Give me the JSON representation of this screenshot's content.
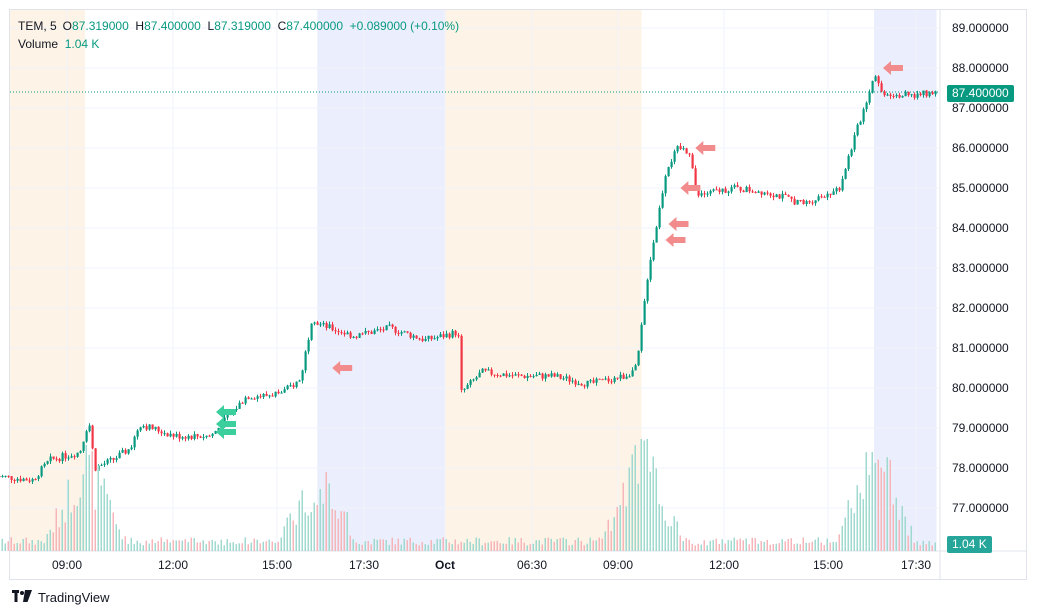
{
  "legend": {
    "symbol": "TEM, 5",
    "open_label": "O",
    "open": "87.319000",
    "high_label": "H",
    "high": "87.400000",
    "low_label": "L",
    "low": "87.319000",
    "close_label": "C",
    "close": "87.400000",
    "change": "+0.089000 (+0.10%)",
    "volume_label": "Volume",
    "volume": "1.04 K"
  },
  "current_price_label": "87.400000",
  "current_volume_label": "1.04 K",
  "branding": "TradingView",
  "colors": {
    "up": "#089981",
    "down": "#f23645",
    "premarket": "#fdf3e6",
    "afterhours": "#ebeffd",
    "arrow_up": "#3ccf9e",
    "arrow_down": "#f28c8c"
  },
  "chart_data": {
    "type": "candlestick",
    "title": "TEM, 5",
    "ylim": [
      76.0,
      89.0
    ],
    "y_ticks": [
      "77.000000",
      "78.000000",
      "79.000000",
      "80.000000",
      "81.000000",
      "82.000000",
      "83.000000",
      "84.000000",
      "85.000000",
      "86.000000",
      "87.000000",
      "88.000000",
      "89.000000"
    ],
    "x_ticks": [
      "09:00",
      "12:00",
      "15:00",
      "17:30",
      "Oct",
      "06:30",
      "09:00",
      "12:00",
      "15:00",
      "17:30"
    ],
    "last_price": 87.4,
    "sessions": [
      {
        "type": "premarket",
        "from": "Day1 04:00",
        "to": "Day1 09:30"
      },
      {
        "type": "afterhours",
        "from": "Day1 16:00",
        "to": "Day1 20:00"
      },
      {
        "type": "premarket",
        "from": "Day2 04:00",
        "to": "Day2 09:30"
      },
      {
        "type": "afterhours",
        "from": "Day2 16:00",
        "to": "Day2 17:45"
      }
    ],
    "price_path": [
      [
        "Day1 07:00",
        77.8
      ],
      [
        "Day1 08:00",
        77.7
      ],
      [
        "Day1 08:30",
        78.2
      ],
      [
        "Day1 09:20",
        78.4
      ],
      [
        "Day1 09:35",
        79.2
      ],
      [
        "Day1 09:45",
        78.0
      ],
      [
        "Day1 10:15",
        78.2
      ],
      [
        "Day1 10:45",
        78.5
      ],
      [
        "Day1 11:00",
        79.1
      ],
      [
        "Day1 12:00",
        78.8
      ],
      [
        "Day1 13:00",
        78.8
      ],
      [
        "Day1 13:30",
        79.3
      ],
      [
        "Day1 14:00",
        79.8
      ],
      [
        "Day1 14:30",
        79.8
      ],
      [
        "Day1 15:00",
        79.9
      ],
      [
        "Day1 15:30",
        80.2
      ],
      [
        "Day1 15:50",
        81.8
      ],
      [
        "Day1 16:00",
        81.6
      ],
      [
        "Day1 17:00",
        81.3
      ],
      [
        "Day1 18:00",
        81.5
      ],
      [
        "Day1 19:00",
        81.2
      ],
      [
        "Day1 19:55",
        81.4
      ],
      [
        "Day1 20:00",
        79.5
      ],
      [
        "Day2 04:00",
        79.5
      ],
      [
        "Day2 05:00",
        80.4
      ],
      [
        "Day2 06:00",
        80.3
      ],
      [
        "Day2 07:00",
        80.3
      ],
      [
        "Day2 08:00",
        80.1
      ],
      [
        "Day2 09:00",
        80.3
      ],
      [
        "Day2 09:20",
        80.5
      ],
      [
        "Day2 09:40",
        83.0
      ],
      [
        "Day2 09:55",
        84.2
      ],
      [
        "Day2 10:10",
        85.5
      ],
      [
        "Day2 10:30",
        86.0
      ],
      [
        "Day2 10:50",
        85.9
      ],
      [
        "Day2 11:00",
        84.8
      ],
      [
        "Day2 12:00",
        85.0
      ],
      [
        "Day2 13:00",
        84.9
      ],
      [
        "Day2 14:00",
        84.6
      ],
      [
        "Day2 15:00",
        85.0
      ],
      [
        "Day2 15:20",
        86.0
      ],
      [
        "Day2 15:50",
        87.4
      ],
      [
        "Day2 16:00",
        87.9
      ],
      [
        "Day2 16:10",
        87.4
      ],
      [
        "Day2 17:00",
        87.3
      ],
      [
        "Day2 17:45",
        87.4
      ]
    ],
    "volume": {
      "ylim": [
        0,
        1
      ],
      "spikes": [
        [
          "Day1 09:30",
          0.9
        ],
        [
          "Day1 16:00",
          0.8
        ],
        [
          "Day2 09:30",
          0.95
        ],
        [
          "Day2 16:00",
          1.0
        ]
      ]
    },
    "markers": [
      {
        "time": "Day1 13:00",
        "price": 79.4,
        "direction": "buy"
      },
      {
        "time": "Day1 13:00",
        "price": 79.1,
        "direction": "buy"
      },
      {
        "time": "Day1 13:00",
        "price": 78.9,
        "direction": "buy"
      },
      {
        "time": "Day1 16:15",
        "price": 80.5,
        "direction": "sell"
      },
      {
        "time": "Day2 10:00",
        "price": 83.7,
        "direction": "sell"
      },
      {
        "time": "Day2 10:05",
        "price": 84.1,
        "direction": "sell"
      },
      {
        "time": "Day2 10:25",
        "price": 85.0,
        "direction": "sell"
      },
      {
        "time": "Day2 10:50",
        "price": 86.0,
        "direction": "sell"
      },
      {
        "time": "Day2 16:05",
        "price": 88.0,
        "direction": "sell"
      }
    ]
  }
}
